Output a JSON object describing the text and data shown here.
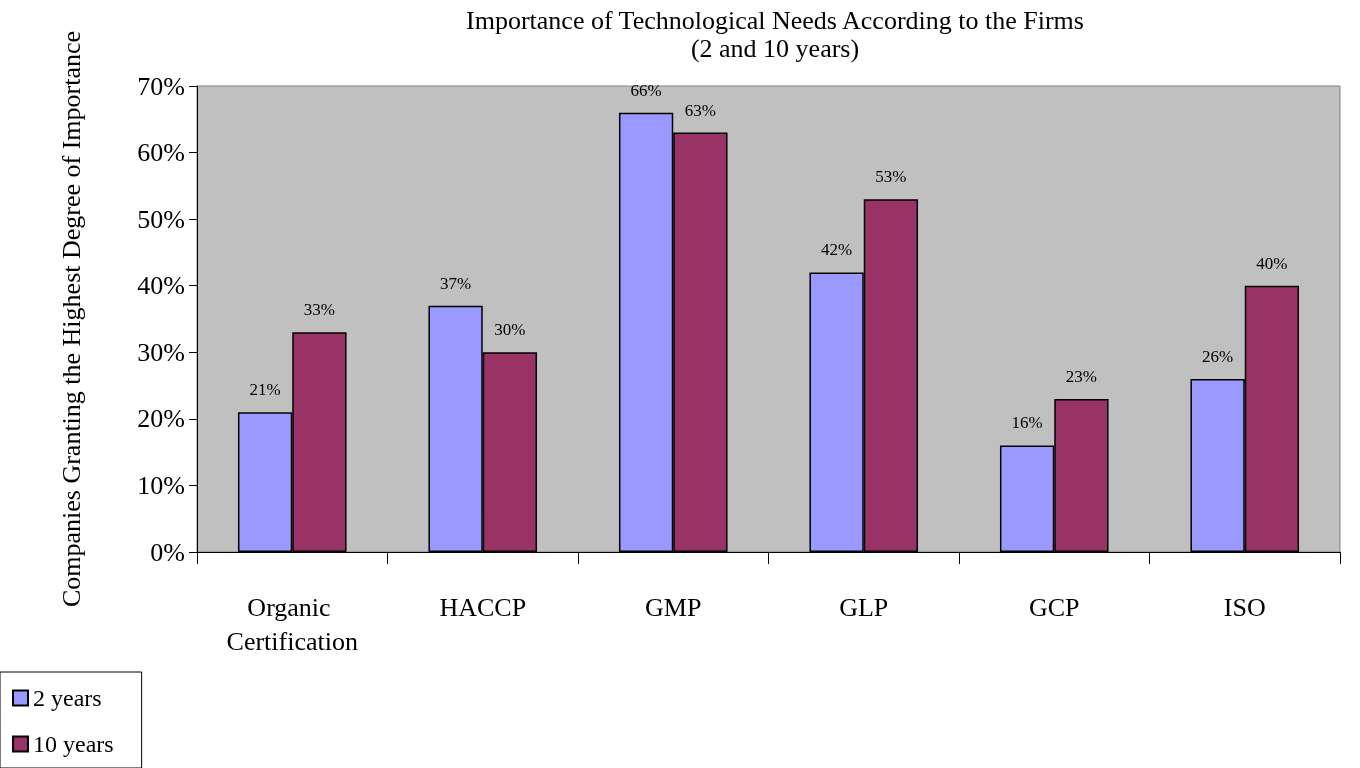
{
  "chart_data": {
    "type": "bar",
    "title": "Importance of Technological Needs According to the Firms",
    "subtitle": "(2 and 10 years)",
    "ylabel": "Companies Granting the Highest Degree of Importance",
    "categories": [
      "Organic Certification",
      "HACCP",
      "GMP",
      "GLP",
      "GCP",
      "ISO"
    ],
    "series": [
      {
        "name": "2 years",
        "color": "#9999ff",
        "values": [
          21,
          37,
          66,
          42,
          16,
          26
        ],
        "value_labels": [
          "21%",
          "37%",
          "66%",
          "42%",
          "16%",
          "26%"
        ]
      },
      {
        "name": "10 years",
        "color": "#993366",
        "values": [
          33,
          30,
          63,
          53,
          23,
          40
        ],
        "value_labels": [
          "33%",
          "30%",
          "63%",
          "53%",
          "23%",
          "40%"
        ]
      }
    ],
    "ylim": [
      0,
      70
    ],
    "yticks": [
      {
        "value": 0,
        "label": "0%"
      },
      {
        "value": 10,
        "label": "10%"
      },
      {
        "value": 20,
        "label": "20%"
      },
      {
        "value": 30,
        "label": "30%"
      },
      {
        "value": 40,
        "label": "40%"
      },
      {
        "value": 50,
        "label": "50%"
      },
      {
        "value": 60,
        "label": "60%"
      },
      {
        "value": 70,
        "label": "70%"
      }
    ],
    "grid": false,
    "legend": "bottom left"
  }
}
